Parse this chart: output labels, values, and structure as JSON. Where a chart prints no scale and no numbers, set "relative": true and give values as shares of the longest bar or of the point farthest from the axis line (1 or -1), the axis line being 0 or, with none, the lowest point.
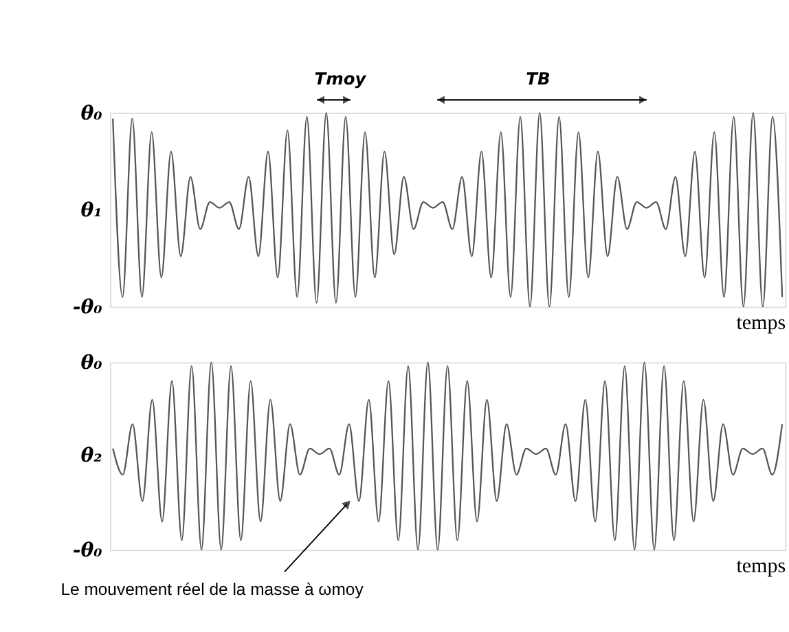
{
  "chart_data": [
    {
      "type": "line",
      "relative": true,
      "xlabel": "temps",
      "annotations": [
        "θ₀",
        "θ₁",
        "-θ₀",
        "Tmoy",
        "TB"
      ],
      "grid": false,
      "categories": [
        null,
        null,
        null,
        null,
        null,
        null,
        null,
        null,
        null,
        null,
        null,
        null,
        null,
        null,
        null,
        null,
        null,
        null,
        null,
        null,
        null,
        null,
        null,
        null,
        null,
        null,
        null,
        null,
        null,
        null,
        null,
        null,
        null,
        null,
        null,
        null,
        null,
        null,
        null,
        null,
        null,
        null,
        null,
        null,
        null,
        null,
        null,
        null,
        null,
        null,
        null,
        null,
        null,
        null,
        null,
        null,
        null,
        null,
        null,
        null,
        null,
        null,
        null,
        null,
        null,
        null,
        null,
        null,
        null,
        null
      ],
      "series": [
        {
          "color": "#555555",
          "values": [
            0.97,
            0.05,
            0.97,
            0.05,
            0.9,
            0.15,
            0.8,
            0.26,
            0.67,
            0.4,
            0.54,
            0.51,
            0.54,
            0.4,
            0.67,
            0.26,
            0.8,
            0.15,
            0.91,
            0.05,
            0.98,
            0.02,
            1,
            0.02,
            0.98,
            0.05,
            0.9,
            0.15,
            0.8,
            0.27,
            0.67,
            0.4,
            0.54,
            0.51,
            0.54,
            0.4,
            0.67,
            0.26,
            0.8,
            0.15,
            0.9,
            0.05,
            0.98,
            0,
            1,
            0,
            0.98,
            0.05,
            0.9,
            0.15,
            0.8,
            0.26,
            0.67,
            0.4,
            0.54,
            0.51,
            0.54,
            0.4,
            0.67,
            0.26,
            0.8,
            0.15,
            0.9,
            0.05,
            0.98,
            0,
            1,
            0,
            0.98,
            0.05
          ]
        }
      ]
    },
    {
      "type": "line",
      "relative": true,
      "xlabel": "temps",
      "annotations": [
        "θ₀",
        "θ₂",
        "-θ₀",
        "Le mouvement réel de la masse à ωmoy"
      ],
      "grid": false,
      "categories": [
        null,
        null,
        null,
        null,
        null,
        null,
        null,
        null,
        null,
        null,
        null,
        null,
        null,
        null,
        null,
        null,
        null,
        null,
        null,
        null,
        null,
        null,
        null,
        null,
        null,
        null,
        null,
        null,
        null,
        null,
        null,
        null,
        null,
        null,
        null,
        null,
        null,
        null,
        null,
        null,
        null,
        null,
        null,
        null,
        null,
        null,
        null,
        null,
        null,
        null,
        null,
        null,
        null,
        null,
        null,
        null,
        null,
        null,
        null,
        null,
        null,
        null,
        null,
        null,
        null,
        null,
        null,
        null,
        null
      ],
      "series": [
        {
          "color": "#555555",
          "values": [
            0.54,
            0.4,
            0.67,
            0.26,
            0.8,
            0.15,
            0.9,
            0.05,
            0.98,
            0,
            1,
            0,
            0.98,
            0.05,
            0.9,
            0.15,
            0.8,
            0.26,
            0.67,
            0.4,
            0.54,
            0.51,
            0.54,
            0.4,
            0.67,
            0.26,
            0.8,
            0.15,
            0.9,
            0.05,
            0.98,
            0,
            1,
            0,
            0.98,
            0.05,
            0.9,
            0.15,
            0.8,
            0.26,
            0.67,
            0.4,
            0.54,
            0.51,
            0.54,
            0.4,
            0.67,
            0.26,
            0.8,
            0.15,
            0.9,
            0.05,
            0.98,
            0,
            1,
            0,
            0.98,
            0.05,
            0.9,
            0.15,
            0.8,
            0.26,
            0.67,
            0.4,
            0.54,
            0.51,
            0.54,
            0.4,
            0.67
          ]
        }
      ]
    }
  ]
}
